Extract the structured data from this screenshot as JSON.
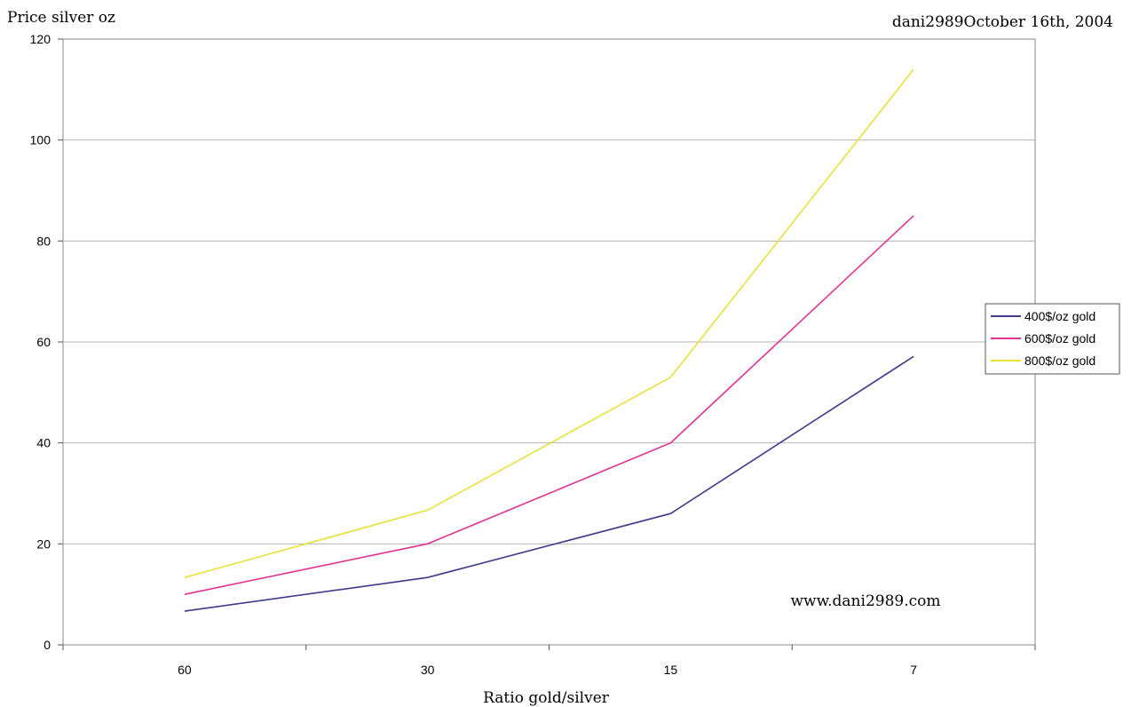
{
  "chart_data": {
    "type": "line",
    "ylabel": "Price silver oz",
    "xlabel": "Ratio gold/silver",
    "header_note": "dani2989October 16th, 2004",
    "watermark": "www.dani2989.com",
    "categories": [
      "60",
      "30",
      "15",
      "7"
    ],
    "ylim": [
      0,
      120
    ],
    "yticks": [
      0,
      20,
      40,
      60,
      80,
      100,
      120
    ],
    "grid": true,
    "legend_position": "right",
    "series": [
      {
        "name": "400$/oz gold",
        "color": "#3d3a8c",
        "values": [
          6.67,
          13.33,
          26.0,
          57.14
        ]
      },
      {
        "name": "600$/oz gold",
        "color": "#e0338f",
        "values": [
          10.0,
          20.0,
          40.0,
          85.0
        ]
      },
      {
        "name": "800$/oz gold",
        "color": "#e6e23a",
        "values": [
          13.33,
          26.67,
          53.0,
          114.0
        ]
      }
    ]
  }
}
